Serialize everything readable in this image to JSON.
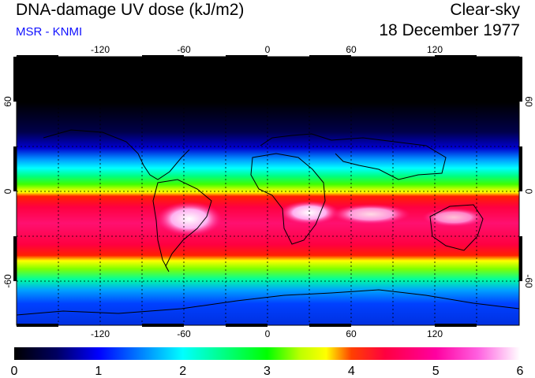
{
  "header": {
    "title": "DNA-damage UV dose (kJ/m2)",
    "credit": "MSR - KNMI",
    "condition": "Clear-sky",
    "date": "18 December 1977"
  },
  "map": {
    "projection": "equirectangular",
    "lon_range": [
      -180,
      180
    ],
    "lat_range": [
      -90,
      90
    ],
    "grid": true,
    "lon_ticks": [
      "-120",
      "-60",
      "0",
      "60",
      "120"
    ],
    "lat_ticks_left": [
      "60",
      "0",
      "-60"
    ],
    "lat_ticks_right": [
      "60",
      "0",
      "-60"
    ]
  },
  "colorbar": {
    "range": [
      0,
      6
    ],
    "labels": [
      "0",
      "1",
      "2",
      "3",
      "4",
      "5",
      "6"
    ],
    "stops": [
      {
        "value": 0.0,
        "color": "#000000"
      },
      {
        "value": 0.5,
        "color": "#000060"
      },
      {
        "value": 1.0,
        "color": "#0000ff"
      },
      {
        "value": 1.5,
        "color": "#0080ff"
      },
      {
        "value": 2.0,
        "color": "#00ffff"
      },
      {
        "value": 2.5,
        "color": "#00ff80"
      },
      {
        "value": 3.0,
        "color": "#00ff00"
      },
      {
        "value": 3.4,
        "color": "#c0ff00"
      },
      {
        "value": 3.7,
        "color": "#ffff00"
      },
      {
        "value": 4.0,
        "color": "#ff4000"
      },
      {
        "value": 4.4,
        "color": "#ff0040"
      },
      {
        "value": 5.0,
        "color": "#ff00a0"
      },
      {
        "value": 5.5,
        "color": "#ff60e0"
      },
      {
        "value": 6.0,
        "color": "#ffffff"
      }
    ]
  }
}
